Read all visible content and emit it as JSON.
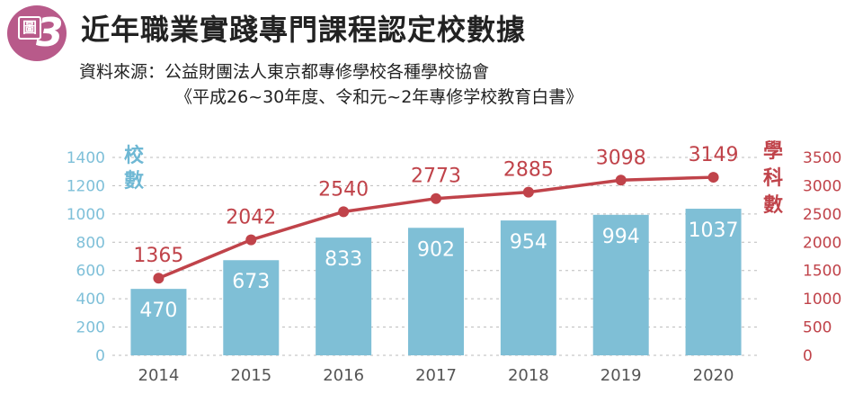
{
  "header": {
    "badge_small": "圖",
    "badge_number": "3",
    "title": "近年職業實踐專門課程認定校數據",
    "source_line1": "資料來源：公益財團法人東京都專修學校各種學校協會",
    "source_line2": "《平成26~30年度、令和元~2年專修学校教育白書》"
  },
  "chart_data": {
    "type": "bar",
    "categories": [
      "2014",
      "2015",
      "2016",
      "2017",
      "2018",
      "2019",
      "2020"
    ],
    "series": [
      {
        "name": "校數",
        "type": "bar",
        "axis": "left",
        "values": [
          470,
          673,
          833,
          902,
          954,
          994,
          1037
        ]
      },
      {
        "name": "學科數",
        "type": "line",
        "axis": "right",
        "values": [
          1365,
          2042,
          2540,
          2773,
          2885,
          3098,
          3149
        ]
      }
    ],
    "ylabel_left": "校數",
    "ylabel_right": "學科數",
    "ylim_left": [
      0,
      1400
    ],
    "ylim_right": [
      0,
      3500
    ],
    "yticks_left": [
      0,
      200,
      400,
      600,
      800,
      1000,
      1200,
      1400
    ],
    "yticks_right": [
      0,
      500,
      1000,
      1500,
      2000,
      2500,
      3000,
      3500
    ],
    "grid": "dashed horizontal",
    "colors": {
      "bar": "#7fbfd6",
      "line": "#c0434a",
      "left_axis": "#7fc0d9",
      "right_axis": "#c0434a"
    }
  }
}
